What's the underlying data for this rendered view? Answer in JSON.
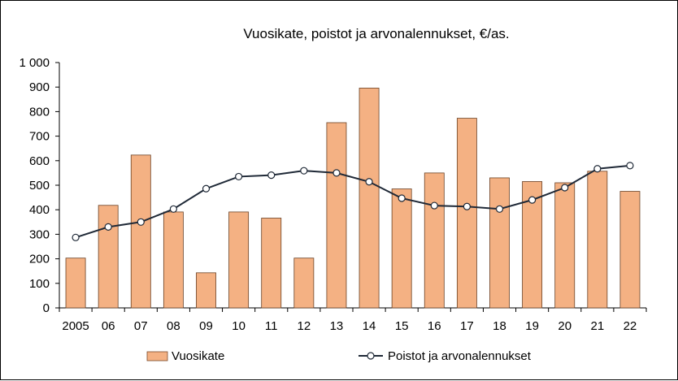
{
  "chart_data": {
    "type": "bar",
    "title": "Vuosikate, poistot ja arvonalennukset, €/as.",
    "xlabel": "",
    "ylabel": "",
    "ylim": [
      0,
      1000
    ],
    "yticks": [
      0,
      100,
      200,
      300,
      400,
      500,
      600,
      700,
      800,
      900,
      1000
    ],
    "ytick_labels": [
      "0",
      "100",
      "200",
      "300",
      "400",
      "500",
      "600",
      "700",
      "800",
      "900",
      "1 000"
    ],
    "categories": [
      "2005",
      "06",
      "07",
      "08",
      "09",
      "10",
      "11",
      "12",
      "13",
      "14",
      "15",
      "16",
      "17",
      "18",
      "19",
      "20",
      "21",
      "22"
    ],
    "grid": false,
    "legend_position": "bottom",
    "series": [
      {
        "name": "Vuosikate",
        "type": "bar",
        "color": "#F4B183",
        "values": [
          203,
          418,
          623,
          391,
          143,
          391,
          366,
          203,
          755,
          896,
          485,
          550,
          773,
          530,
          515,
          510,
          557,
          475
        ]
      },
      {
        "name": "Poistot ja arvonalennukset",
        "type": "line",
        "color": "#1F2937",
        "marker": "circle-open",
        "values": [
          287,
          330,
          350,
          403,
          486,
          535,
          541,
          559,
          550,
          514,
          447,
          417,
          413,
          403,
          440,
          490,
          567,
          580
        ]
      }
    ]
  }
}
